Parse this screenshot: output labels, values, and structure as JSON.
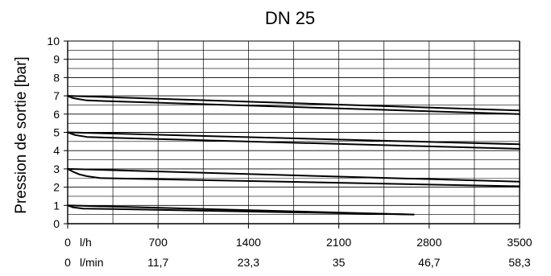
{
  "chart_data": {
    "type": "line",
    "title": "DN 25",
    "ylabel": "Pression de sortie [bar]",
    "xlabel": "",
    "x_unit_primary": "l/h",
    "x_unit_secondary": "l/min",
    "xlim": [
      0,
      3500
    ],
    "ylim": [
      0,
      10
    ],
    "x_ticks": [
      {
        "value": 0,
        "primary": "0",
        "secondary": "0"
      },
      {
        "value": 700,
        "primary": "700",
        "secondary": "11,7"
      },
      {
        "value": 1400,
        "primary": "1400",
        "secondary": "23,3"
      },
      {
        "value": 2100,
        "primary": "2100",
        "secondary": "35"
      },
      {
        "value": 2800,
        "primary": "2800",
        "secondary": "46,7"
      },
      {
        "value": 3500,
        "primary": "3500",
        "secondary": "58,3"
      }
    ],
    "y_ticks": [
      "0",
      "1",
      "2",
      "3",
      "4",
      "5",
      "6",
      "7",
      "8",
      "9",
      "10"
    ],
    "grid": true,
    "series": [
      {
        "points": [
          [
            0,
            7.0
          ],
          [
            3500,
            6.2
          ]
        ]
      },
      {
        "points": [
          [
            0,
            7.0
          ],
          [
            30,
            6.9
          ],
          [
            60,
            6.85
          ],
          [
            150,
            6.75
          ],
          [
            350,
            6.7
          ],
          [
            3500,
            6.0
          ]
        ]
      },
      {
        "points": [
          [
            0,
            5.0
          ],
          [
            3500,
            4.35
          ]
        ]
      },
      {
        "points": [
          [
            0,
            5.0
          ],
          [
            30,
            4.92
          ],
          [
            60,
            4.85
          ],
          [
            150,
            4.75
          ],
          [
            350,
            4.7
          ],
          [
            3500,
            4.1
          ]
        ]
      },
      {
        "points": [
          [
            0,
            3.0
          ],
          [
            3500,
            2.3
          ]
        ]
      },
      {
        "points": [
          [
            0,
            3.0
          ],
          [
            40,
            2.85
          ],
          [
            90,
            2.7
          ],
          [
            150,
            2.6
          ],
          [
            250,
            2.5
          ],
          [
            3500,
            2.05
          ]
        ]
      },
      {
        "points": [
          [
            0,
            1.0
          ],
          [
            2680,
            0.5
          ]
        ]
      },
      {
        "points": [
          [
            0,
            1.0
          ],
          [
            40,
            0.9
          ],
          [
            120,
            0.83
          ],
          [
            350,
            0.8
          ],
          [
            2680,
            0.5
          ]
        ]
      }
    ]
  }
}
